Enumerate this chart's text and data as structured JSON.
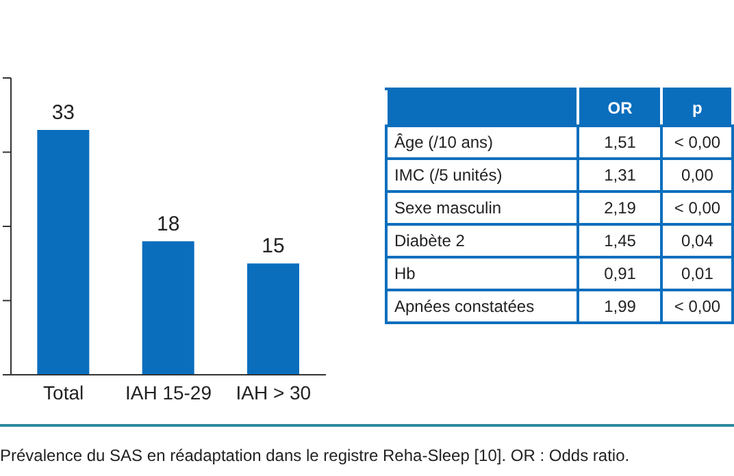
{
  "chart_data": [
    {
      "type": "bar",
      "categories": [
        "Total",
        "IAH 15-29",
        "IAH > 30"
      ],
      "values": [
        33,
        18,
        15
      ],
      "color": "#0a6ebd",
      "ylim": [
        0,
        40
      ],
      "yticks": [
        {
          "value": 0,
          "label": null
        },
        {
          "value": 10,
          "label": null
        },
        {
          "value": 20,
          "label": null
        },
        {
          "value": 30,
          "label": null
        },
        {
          "value": 40,
          "label": null
        }
      ],
      "tick_labels": "x",
      "data_labels": true,
      "annotations": [
        "Prévalence du SAS en réadaptation dans le registre Reha-Sleep [10]. OR : Odds ratio."
      ]
    },
    {
      "type": "other",
      "categories": [
        null,
        "OR",
        "p"
      ],
      "y_categories": [
        "Âge (/10 ans)",
        "IMC (/5 unités)",
        "Sexe masculin",
        "Diabète 2",
        "Hb",
        "Apnées constatées"
      ],
      "cell_labels": [
        [
          "1,51",
          "< 0,00"
        ],
        [
          "1,31",
          "0,00"
        ],
        [
          "2,19",
          "< 0,00"
        ],
        [
          "1,45",
          "0,04"
        ],
        [
          "0,91",
          "0,01"
        ],
        [
          "1,99",
          "< 0,00"
        ]
      ],
      "color": "#0a6ebd"
    }
  ]
}
